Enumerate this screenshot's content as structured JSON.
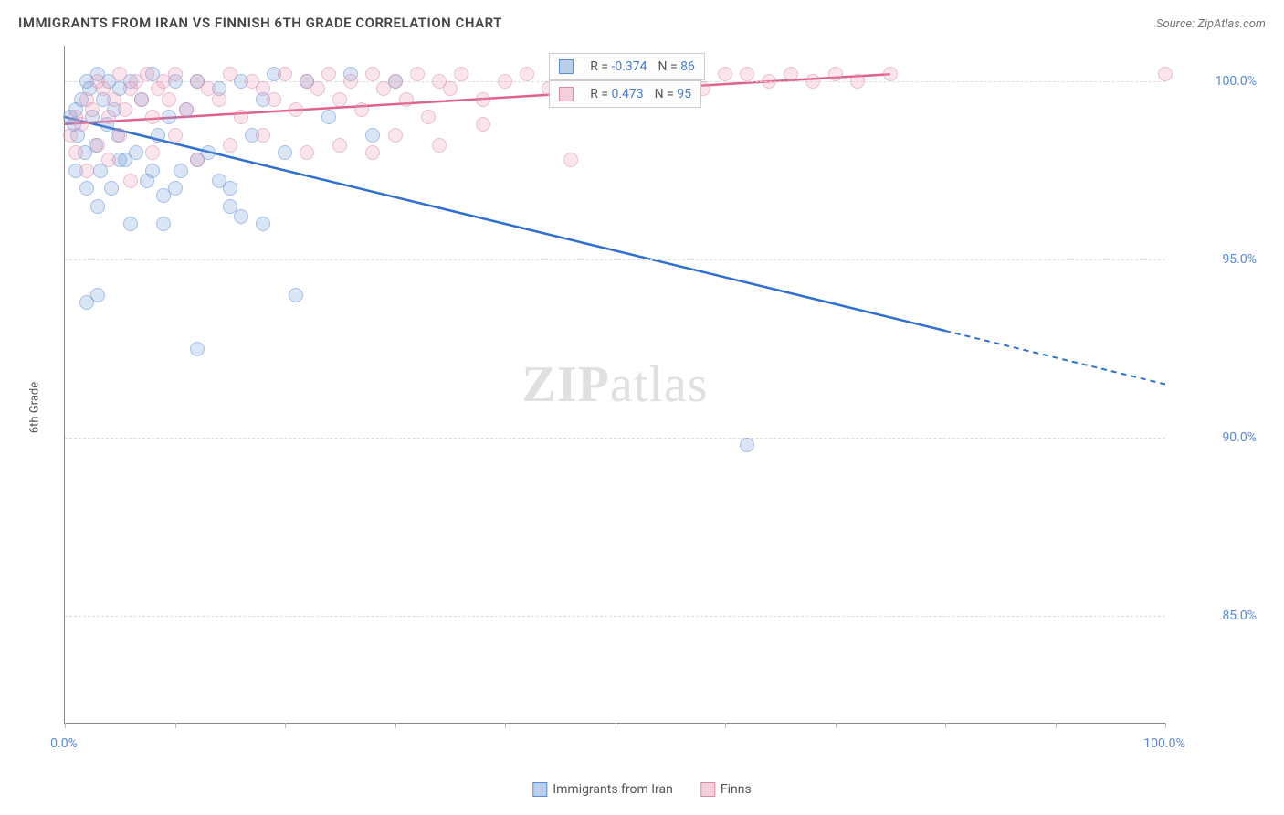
{
  "header": {
    "title": "IMMIGRANTS FROM IRAN VS FINNISH 6TH GRADE CORRELATION CHART",
    "source": "Source: ZipAtlas.com"
  },
  "axes": {
    "ylabel": "6th Grade",
    "xlim": [
      0,
      100
    ],
    "ylim": [
      82,
      101
    ],
    "yticks": [
      85,
      90,
      95,
      100
    ],
    "ytick_labels": [
      "85.0%",
      "90.0%",
      "95.0%",
      "100.0%"
    ],
    "xticks": [
      0,
      100
    ],
    "xtick_labels": [
      "0.0%",
      "100.0%"
    ],
    "grid_color": "#dddddd"
  },
  "watermark": {
    "zip": "ZIP",
    "atlas": "atlas"
  },
  "series": [
    {
      "name": "Immigrants from Iran",
      "color_fill": "rgba(120,160,220,0.5)",
      "color_stroke": "#5b8bd4",
      "line_color": "#2f6fd0",
      "R": "-0.374",
      "N": "86",
      "trend": {
        "x1": 0,
        "y1": 99.0,
        "x2": 80,
        "y2": 93.0,
        "x2_dash": 100,
        "y2_dash": 91.5
      },
      "points": [
        [
          0.5,
          99.0
        ],
        [
          0.8,
          98.8
        ],
        [
          1.0,
          99.2
        ],
        [
          1.2,
          98.5
        ],
        [
          1.5,
          99.5
        ],
        [
          1.8,
          98.0
        ],
        [
          2.0,
          100.0
        ],
        [
          2.2,
          99.8
        ],
        [
          2.5,
          99.0
        ],
        [
          2.8,
          98.2
        ],
        [
          3.0,
          100.2
        ],
        [
          3.2,
          97.5
        ],
        [
          3.5,
          99.5
        ],
        [
          3.8,
          98.8
        ],
        [
          4.0,
          100.0
        ],
        [
          4.2,
          97.0
        ],
        [
          4.5,
          99.2
        ],
        [
          4.8,
          98.5
        ],
        [
          5.0,
          99.8
        ],
        [
          5.5,
          97.8
        ],
        [
          6.0,
          100.0
        ],
        [
          6.5,
          98.0
        ],
        [
          7.0,
          99.5
        ],
        [
          7.5,
          97.2
        ],
        [
          8.0,
          100.2
        ],
        [
          8.5,
          98.5
        ],
        [
          9.0,
          96.8
        ],
        [
          9.5,
          99.0
        ],
        [
          10.0,
          100.0
        ],
        [
          10.5,
          97.5
        ],
        [
          11.0,
          99.2
        ],
        [
          12.0,
          100.0
        ],
        [
          13.0,
          98.0
        ],
        [
          14.0,
          99.8
        ],
        [
          15.0,
          97.0
        ],
        [
          16.0,
          100.0
        ],
        [
          17.0,
          98.5
        ],
        [
          18.0,
          99.5
        ],
        [
          19.0,
          100.2
        ],
        [
          20.0,
          98.0
        ],
        [
          22.0,
          100.0
        ],
        [
          24.0,
          99.0
        ],
        [
          26.0,
          100.2
        ],
        [
          28.0,
          98.5
        ],
        [
          30.0,
          100.0
        ],
        [
          1.0,
          97.5
        ],
        [
          2.0,
          97.0
        ],
        [
          3.0,
          96.5
        ],
        [
          3.0,
          94.0
        ],
        [
          5.0,
          97.8
        ],
        [
          6.0,
          96.0
        ],
        [
          8.0,
          97.5
        ],
        [
          10.0,
          97.0
        ],
        [
          12.0,
          97.8
        ],
        [
          14.0,
          97.2
        ],
        [
          15.0,
          96.5
        ],
        [
          9.0,
          96.0
        ],
        [
          16.0,
          96.2
        ],
        [
          18.0,
          96.0
        ],
        [
          2.0,
          93.8
        ],
        [
          12.0,
          92.5
        ],
        [
          21.0,
          94.0
        ],
        [
          62.0,
          89.8
        ]
      ]
    },
    {
      "name": "Finns",
      "color_fill": "rgba(235,160,185,0.5)",
      "color_stroke": "#d98aa8",
      "line_color": "#e06090",
      "R": "0.473",
      "N": "95",
      "trend": {
        "x1": 0,
        "y1": 98.8,
        "x2": 75,
        "y2": 100.2,
        "x2_dash": 75,
        "y2_dash": 100.2
      },
      "points": [
        [
          0.5,
          98.5
        ],
        [
          1.0,
          99.0
        ],
        [
          1.5,
          98.8
        ],
        [
          2.0,
          99.5
        ],
        [
          2.5,
          99.2
        ],
        [
          3.0,
          100.0
        ],
        [
          3.5,
          99.8
        ],
        [
          4.0,
          99.0
        ],
        [
          4.5,
          99.5
        ],
        [
          5.0,
          100.2
        ],
        [
          5.5,
          99.2
        ],
        [
          6.0,
          99.8
        ],
        [
          6.5,
          100.0
        ],
        [
          7.0,
          99.5
        ],
        [
          7.5,
          100.2
        ],
        [
          8.0,
          99.0
        ],
        [
          8.5,
          99.8
        ],
        [
          9.0,
          100.0
        ],
        [
          9.5,
          99.5
        ],
        [
          10.0,
          100.2
        ],
        [
          11.0,
          99.2
        ],
        [
          12.0,
          100.0
        ],
        [
          13.0,
          99.8
        ],
        [
          14.0,
          99.5
        ],
        [
          15.0,
          100.2
        ],
        [
          16.0,
          99.0
        ],
        [
          17.0,
          100.0
        ],
        [
          18.0,
          99.8
        ],
        [
          19.0,
          99.5
        ],
        [
          20.0,
          100.2
        ],
        [
          21.0,
          99.2
        ],
        [
          22.0,
          100.0
        ],
        [
          23.0,
          99.8
        ],
        [
          24.0,
          100.2
        ],
        [
          25.0,
          99.5
        ],
        [
          26.0,
          100.0
        ],
        [
          27.0,
          99.2
        ],
        [
          28.0,
          100.2
        ],
        [
          29.0,
          99.8
        ],
        [
          30.0,
          100.0
        ],
        [
          31.0,
          99.5
        ],
        [
          32.0,
          100.2
        ],
        [
          33.0,
          99.0
        ],
        [
          34.0,
          100.0
        ],
        [
          35.0,
          99.8
        ],
        [
          36.0,
          100.2
        ],
        [
          38.0,
          99.5
        ],
        [
          40.0,
          100.0
        ],
        [
          42.0,
          100.2
        ],
        [
          44.0,
          99.8
        ],
        [
          46.0,
          97.8
        ],
        [
          48.0,
          100.0
        ],
        [
          50.0,
          100.2
        ],
        [
          55.0,
          100.0
        ],
        [
          58.0,
          99.8
        ],
        [
          60.0,
          100.2
        ],
        [
          62.0,
          100.2
        ],
        [
          64.0,
          100.0
        ],
        [
          66.0,
          100.2
        ],
        [
          68.0,
          100.0
        ],
        [
          70.0,
          100.2
        ],
        [
          72.0,
          100.0
        ],
        [
          75.0,
          100.2
        ],
        [
          100.0,
          100.2
        ],
        [
          1.0,
          98.0
        ],
        [
          2.0,
          97.5
        ],
        [
          3.0,
          98.2
        ],
        [
          4.0,
          97.8
        ],
        [
          5.0,
          98.5
        ],
        [
          6.0,
          97.2
        ],
        [
          8.0,
          98.0
        ],
        [
          10.0,
          98.5
        ],
        [
          12.0,
          97.8
        ],
        [
          15.0,
          98.2
        ],
        [
          18.0,
          98.5
        ],
        [
          22.0,
          98.0
        ],
        [
          25.0,
          98.2
        ],
        [
          28.0,
          98.0
        ],
        [
          30.0,
          98.5
        ],
        [
          34.0,
          98.2
        ],
        [
          38.0,
          98.8
        ]
      ]
    }
  ],
  "stats_legend": {
    "r_label": "R =",
    "n_label": "N ="
  },
  "bottom_legend": {
    "s0": "Immigrants from Iran",
    "s1": "Finns"
  }
}
